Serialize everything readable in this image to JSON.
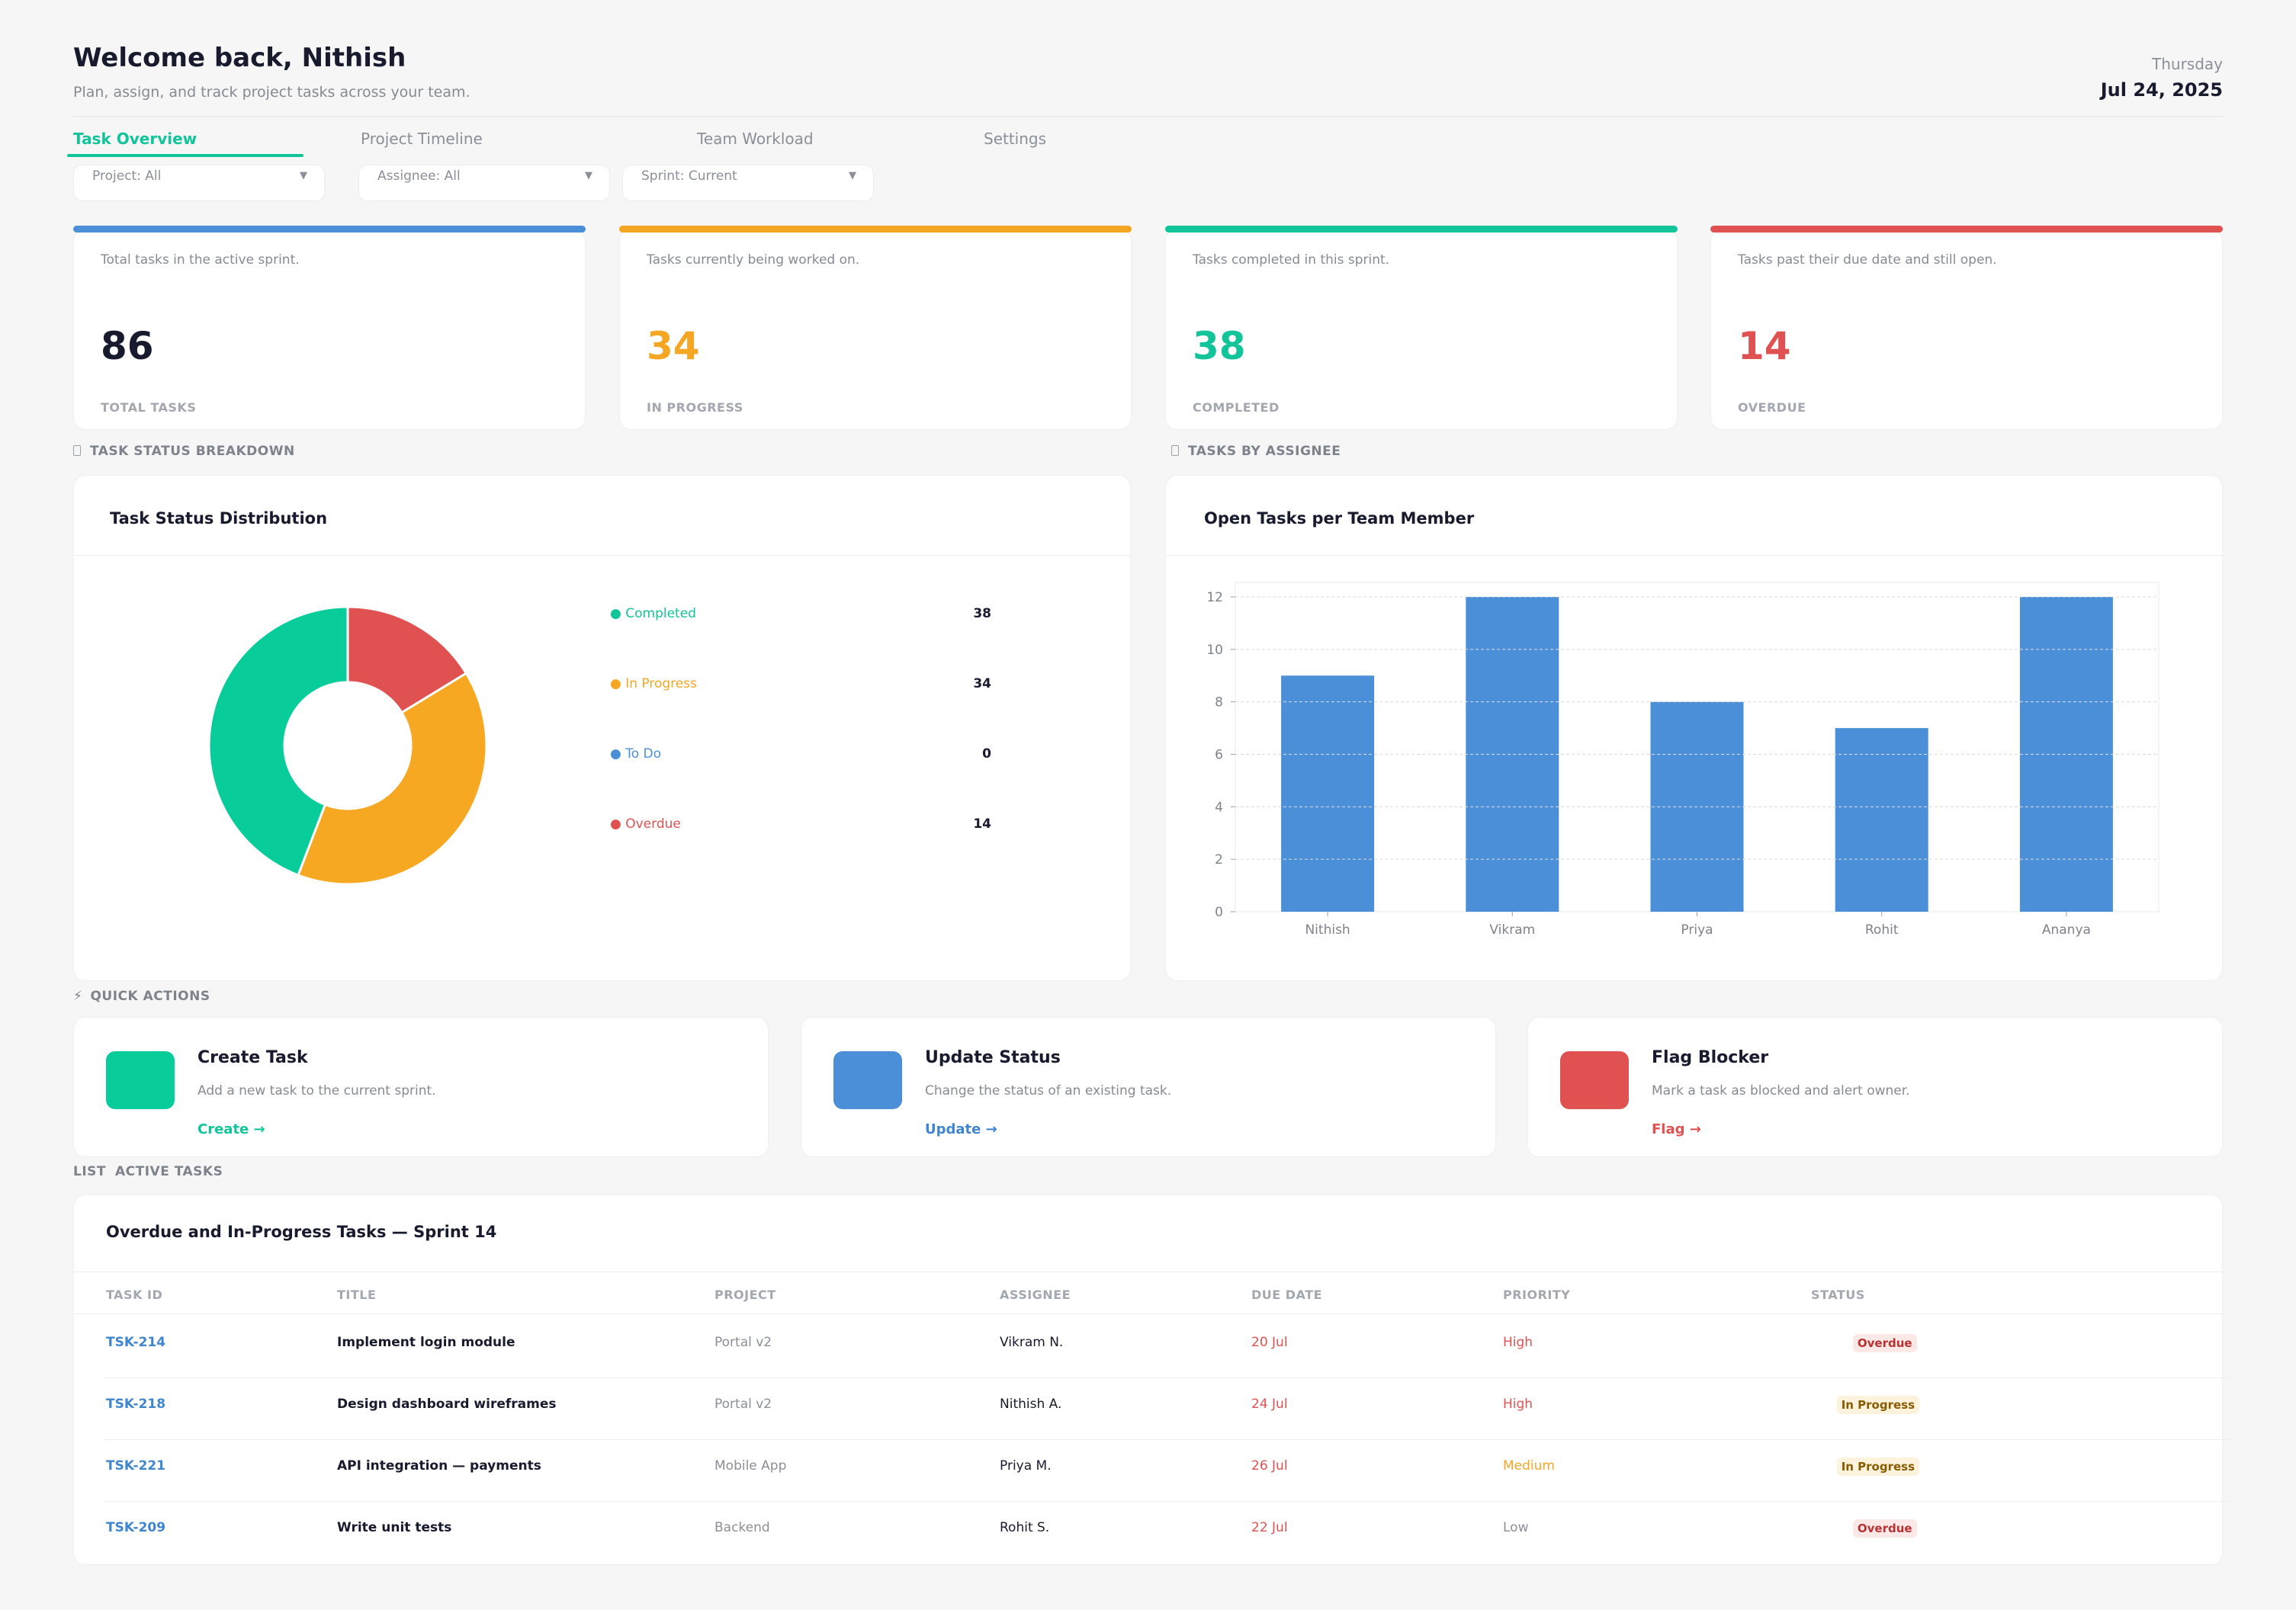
{
  "header": {
    "title": "Welcome back, Nithish",
    "subtitle": "Plan, assign, and track project tasks across your team.",
    "weekday": "Thursday",
    "date": "Jul 24, 2025"
  },
  "tabs": [
    {
      "label": "Task Overview",
      "active": true
    },
    {
      "label": "Project Timeline",
      "active": false
    },
    {
      "label": "Team Workload",
      "active": false
    },
    {
      "label": "Settings",
      "active": false
    }
  ],
  "filters": [
    {
      "label": "Project: All"
    },
    {
      "label": "Assignee: All"
    },
    {
      "label": "Sprint: Current"
    }
  ],
  "stats": [
    {
      "desc": "Total tasks in the active sprint.",
      "value": "86",
      "label": "TOTAL TASKS",
      "accent": "#4a8fd8",
      "value_color": "#181a2e"
    },
    {
      "desc": "Tasks currently being worked on.",
      "value": "34",
      "label": "IN PROGRESS",
      "accent": "#f5a623",
      "value_color": "#f5a623"
    },
    {
      "desc": "Tasks completed in this sprint.",
      "value": "38",
      "label": "COMPLETED",
      "accent": "#12c49a",
      "value_color": "#12c49a"
    },
    {
      "desc": "Tasks past their due date and still open.",
      "value": "14",
      "label": "OVERDUE",
      "accent": "#e05252",
      "value_color": "#e05252"
    }
  ],
  "sections": {
    "status": "TASK STATUS BREAKDOWN",
    "assignee": "TASKS BY ASSIGNEE",
    "quick": "QUICK ACTIONS",
    "list_prefix": "LIST",
    "list": "ACTIVE TASKS"
  },
  "status_panel": {
    "title": "Task Status Distribution",
    "legend": [
      {
        "label": "● Completed",
        "value": "38",
        "color": "#12c49a"
      },
      {
        "label": "● In Progress",
        "value": "34",
        "color": "#f5a623"
      },
      {
        "label": "● To Do",
        "value": "0",
        "color": "#4a8fd8"
      },
      {
        "label": "● Overdue",
        "value": "14",
        "color": "#e05252"
      }
    ]
  },
  "assignee_panel": {
    "title": "Open Tasks per Team Member"
  },
  "chart_data": [
    {
      "type": "pie",
      "donut": true,
      "categories": [
        "Completed",
        "In Progress",
        "To Do",
        "Overdue"
      ],
      "values": [
        38,
        34,
        0,
        14
      ],
      "colors": [
        "#08cd9b",
        "#f6a823",
        "#4a8fd8",
        "#e05252"
      ]
    },
    {
      "type": "bar",
      "categories": [
        "Nithish",
        "Vikram",
        "Priya",
        "Rohit",
        "Ananya"
      ],
      "values": [
        9,
        12,
        8,
        7,
        12
      ],
      "ylim": [
        0,
        12
      ],
      "yticks": [
        "0",
        "2",
        "4",
        "6",
        "8",
        "10",
        "12"
      ],
      "grid": true,
      "color": "#4a8fd8"
    }
  ],
  "quick_actions": [
    {
      "title": "Create Task",
      "desc": "Add a new task to the current sprint.",
      "link": "Create →",
      "color": "#08cd9b",
      "link_color": "#12c49a"
    },
    {
      "title": "Update Status",
      "desc": "Change the status of an existing task.",
      "link": "Update →",
      "color": "#4a8fd8",
      "link_color": "#3f86cf"
    },
    {
      "title": "Flag Blocker",
      "desc": "Mark a task as blocked and alert owner.",
      "link": "Flag →",
      "color": "#e05252",
      "link_color": "#e05252"
    }
  ],
  "table": {
    "title": "Overdue and In-Progress Tasks — Sprint 14",
    "columns": [
      "TASK ID",
      "TITLE",
      "PROJECT",
      "ASSIGNEE",
      "DUE DATE",
      "PRIORITY",
      "STATUS"
    ],
    "rows": [
      {
        "id": "TSK-214",
        "title": "Implement login module",
        "project": "Portal v2",
        "assignee": "Vikram N.",
        "due": "20 Jul",
        "priority": "High",
        "status": "Overdue"
      },
      {
        "id": "TSK-218",
        "title": "Design dashboard wireframes",
        "project": "Portal v2",
        "assignee": "Nithish A.",
        "due": "24 Jul",
        "priority": "High",
        "status": "In Progress"
      },
      {
        "id": "TSK-221",
        "title": "API integration — payments",
        "project": "Mobile App",
        "assignee": "Priya M.",
        "due": "26 Jul",
        "priority": "Medium",
        "status": "In Progress"
      },
      {
        "id": "TSK-209",
        "title": "Write unit tests",
        "project": "Backend",
        "assignee": "Rohit S.",
        "due": "22 Jul",
        "priority": "Low",
        "status": "Overdue"
      }
    ]
  }
}
